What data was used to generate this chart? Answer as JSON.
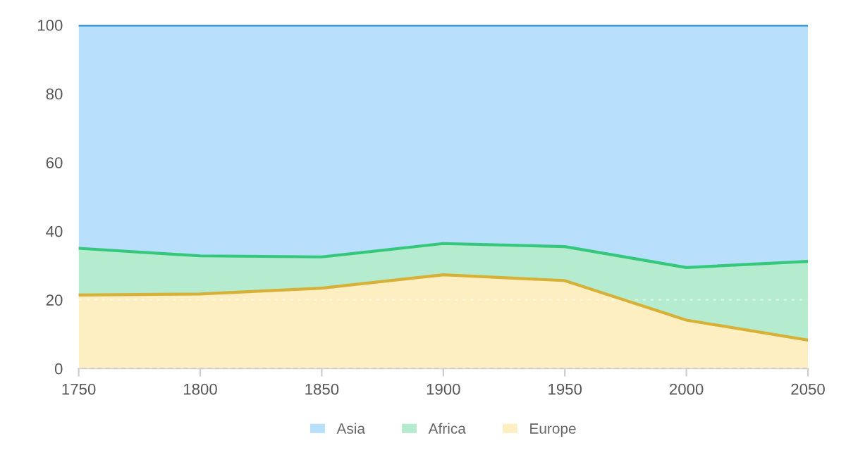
{
  "chart_data": {
    "type": "area",
    "stacked": true,
    "x": [
      1750,
      1800,
      1850,
      1900,
      1950,
      2000,
      2050
    ],
    "series": [
      {
        "name": "Europe",
        "color": "#fdefc2",
        "values": [
          21.4,
          21.7,
          23.4,
          27.3,
          25.6,
          14.1,
          8.3
        ]
      },
      {
        "name": "Africa",
        "color": "#b5ebcf",
        "values": [
          13.6,
          11.1,
          9.1,
          9.1,
          9.9,
          15.3,
          22.9
        ]
      },
      {
        "name": "Asia",
        "color": "#b8dffc",
        "values": [
          65.0,
          67.2,
          67.5,
          63.6,
          64.5,
          70.6,
          68.8
        ]
      }
    ],
    "xlim": [
      1750,
      2050
    ],
    "xticks": [
      1750,
      1800,
      1850,
      1900,
      1950,
      2000,
      2050
    ],
    "ylim": [
      0,
      100
    ],
    "yticks": [
      0,
      20,
      40,
      60,
      80,
      100
    ],
    "grid": "y",
    "legend": "bottom"
  }
}
